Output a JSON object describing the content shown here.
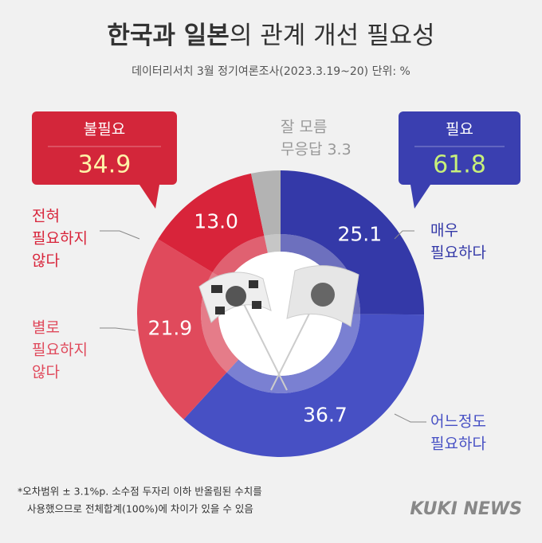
{
  "chart_data": {
    "type": "donut",
    "title": [
      "한국과 일본",
      "의 관계 개선 필요성"
    ],
    "subtitle": "데이터리서치 3월 정기여론조사(2023.3.19~20) 단위: %",
    "categories": [
      [
        "매우",
        "필요하다"
      ],
      [
        "어느정도",
        "필요하다"
      ],
      [
        "별로",
        "필요하지",
        "않다"
      ],
      [
        "전혀",
        "필요하지",
        "않다"
      ],
      [
        "잘 모름",
        "무응답"
      ]
    ],
    "values": [
      25.1,
      36.7,
      21.9,
      13.0,
      3.3
    ],
    "value_labels": [
      "25.1",
      "36.7",
      "21.9",
      "13.0",
      "3.3"
    ],
    "colors": [
      "#3439a8",
      "#4750c4",
      "#e04a5c",
      "#d8243a",
      "#b3b3b3"
    ],
    "groups": [
      {
        "name": "불필요",
        "value": 34.9,
        "color": "#d3263a"
      },
      {
        "name": "필요",
        "value": 61.8,
        "color": "#3a3fb0"
      }
    ],
    "note": [
      "*오차범위 ± 3.1%p. 소수점 두자리 이하 반올림된 수치를",
      "사용했으므로 전체합계(100%)에 차이가 있을 수 있음"
    ],
    "source": "KUKI NEWS"
  }
}
